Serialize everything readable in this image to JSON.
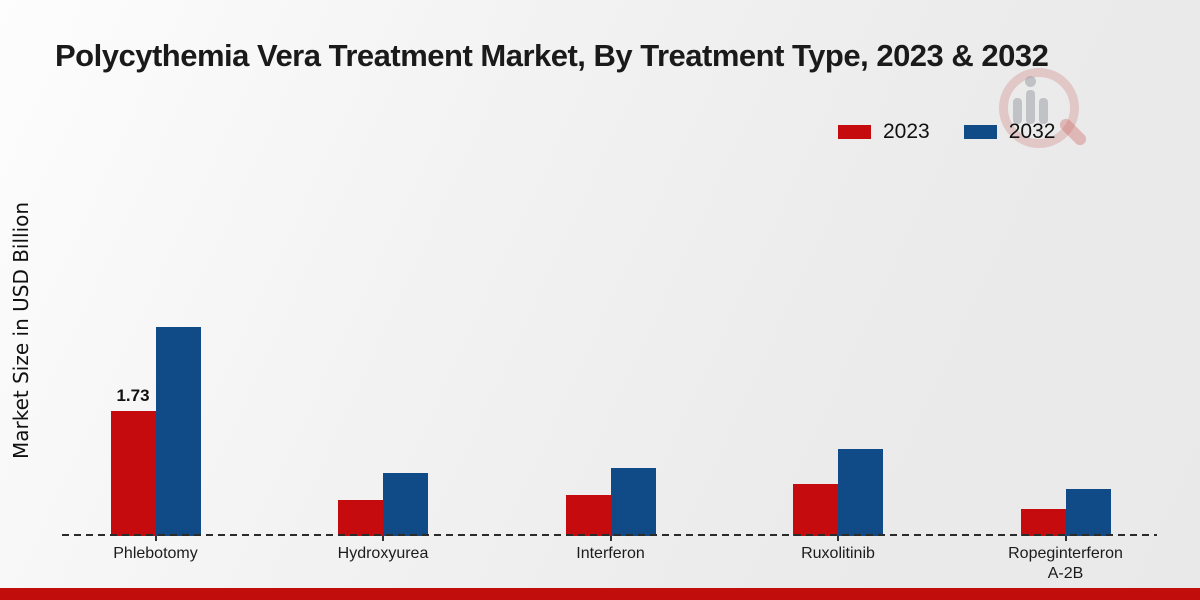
{
  "page": {
    "title": "Polycythemia Vera Treatment Market, By Treatment Type, 2023 & 2032"
  },
  "y_axis": {
    "label": "Market Size in USD Billion"
  },
  "legend": {
    "items": [
      {
        "label": "2023",
        "color": "#c60b0e"
      },
      {
        "label": "2032",
        "color": "#114b87"
      }
    ]
  },
  "chart_data": {
    "type": "bar",
    "title": "Polycythemia Vera Treatment Market, By Treatment Type, 2023 & 2032",
    "ylabel": "Market Size in USD Billion",
    "xlabel": "",
    "categories": [
      "Phlebotomy",
      "Hydroxyurea",
      "Interferon",
      "Ruxolitinib",
      "Ropeginterferon A-2B"
    ],
    "series": [
      {
        "name": "2023",
        "color": "#c60b0e",
        "values": [
          1.73,
          0.5,
          0.57,
          0.72,
          0.37
        ]
      },
      {
        "name": "2032",
        "color": "#114b87",
        "values": [
          2.9,
          0.87,
          0.95,
          1.21,
          0.65
        ]
      }
    ],
    "bar_labels": [
      {
        "series": "2023",
        "category": "Phlebotomy",
        "text": "1.73"
      }
    ],
    "ylim": [
      0,
      3.2
    ],
    "grid": false,
    "legend_position": "top-right",
    "baseline_style": "dashed"
  },
  "watermark": {
    "icon": "magnifier-bar-chart-logo"
  },
  "footer": {
    "band_color": "#c20d0d"
  }
}
